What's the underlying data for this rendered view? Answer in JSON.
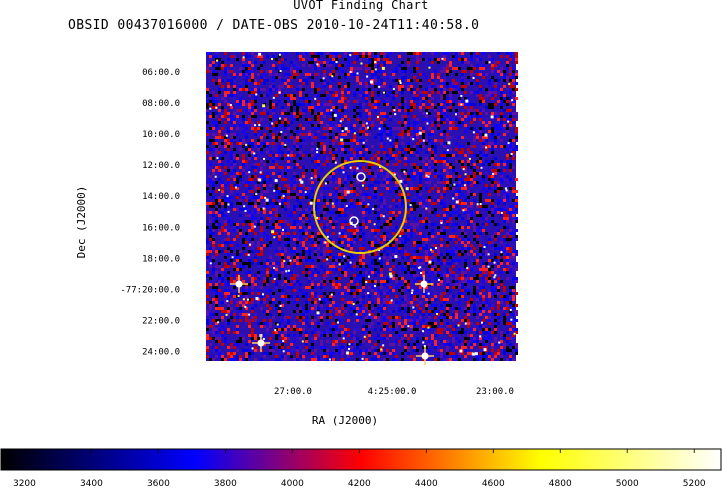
{
  "title": "UVOT Finding Chart",
  "subtitle": "OBSID 00437016000 / DATE-OBS 2010-10-24T11:40:58.0",
  "chart_data": {
    "type": "heatmap",
    "title": "UVOT Finding Chart",
    "xlabel": "RA (J2000)",
    "ylabel": "Dec (J2000)",
    "x_ticks": [
      "27:00.0",
      "4:25:00.0",
      "23:00.0"
    ],
    "y_ticks": [
      "06:00.0",
      "08:00.0",
      "10:00.0",
      "12:00.0",
      "14:00.0",
      "16:00.0",
      "18:00.0",
      "-77:20:00.0",
      "22:00.0",
      "24:00.0"
    ],
    "colorbar": {
      "ticks": [
        3200,
        3400,
        3600,
        3800,
        4000,
        4200,
        4400,
        4600,
        4800,
        5000,
        5200
      ],
      "stops": [
        "#000000",
        "#0000ff",
        "#ff0000",
        "#ffff00",
        "#ffffff"
      ]
    },
    "markers": [
      {
        "type": "circle",
        "color": "#e8d000",
        "label": ""
      },
      {
        "type": "circle",
        "color": "#ffffff",
        "label": ""
      },
      {
        "type": "circle",
        "color": "#ffffff",
        "label": ""
      }
    ]
  }
}
